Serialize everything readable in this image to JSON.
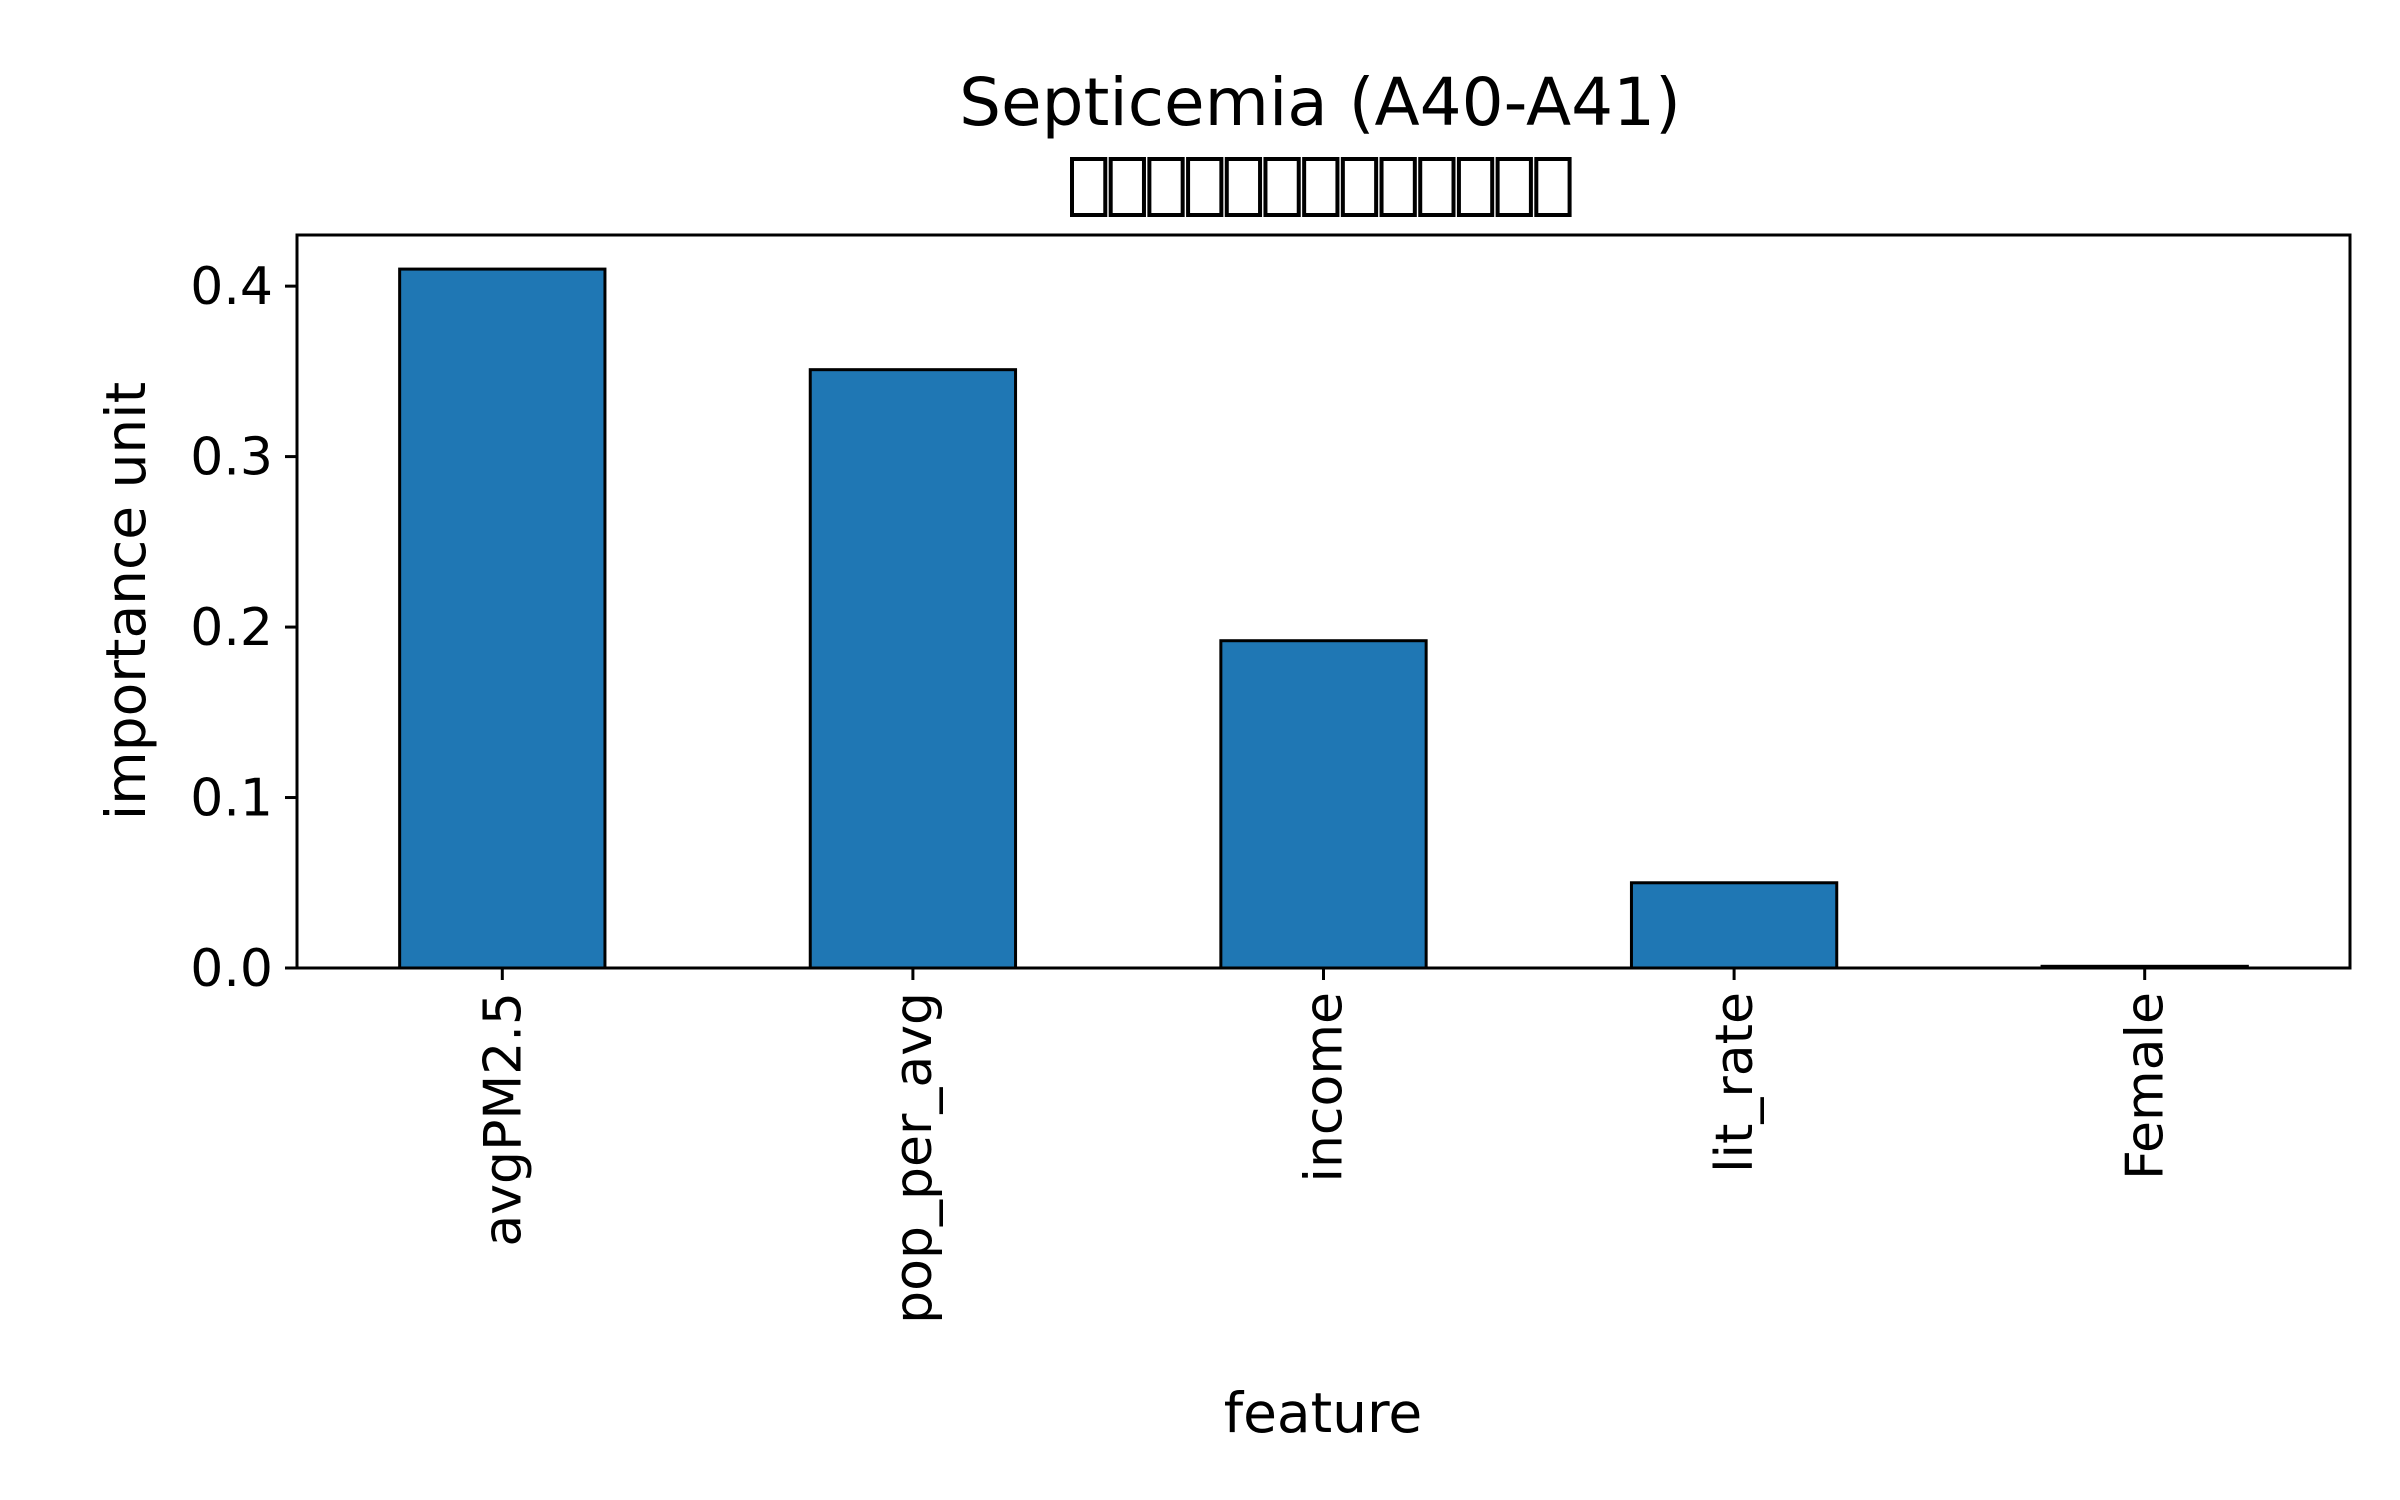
{
  "chart_data": {
    "type": "bar",
    "title": "Septicemia (A40-A41)",
    "subtitle_missing_glyph_count": 13,
    "categories": [
      "avgPM2.5",
      "pop_per_avg",
      "income",
      "lit_rate",
      "Female"
    ],
    "values": [
      0.41,
      0.351,
      0.192,
      0.05,
      0.001
    ],
    "xlabel": "feature",
    "ylabel": "importance unit",
    "ylim": [
      0,
      0.43
    ],
    "yticks": [
      0.0,
      0.1,
      0.2,
      0.3,
      0.4
    ],
    "ytick_labels": [
      "0.0",
      "0.1",
      "0.2",
      "0.3",
      "0.4"
    ],
    "grid": false,
    "legend": null,
    "colors": {
      "bar_fill": "#1f77b4",
      "bar_edge": "#000000",
      "axis": "#000000",
      "text": "#000000"
    }
  }
}
